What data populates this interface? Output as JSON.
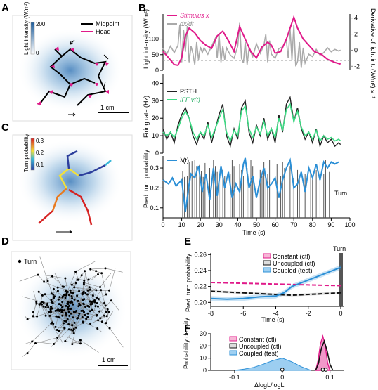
{
  "panel_labels": {
    "a": "A",
    "b": "B",
    "c": "C",
    "d": "D",
    "e": "E",
    "f": "F"
  },
  "panel_a": {
    "colorbar_label": "Light intensity (W/m²)",
    "colorbar_max": "200",
    "colorbar_min": "0",
    "legend_midpoint": "Midpoint",
    "legend_head": "Head",
    "scalebar": "1 cm",
    "colors": {
      "midpoint": "#000000",
      "head": "#e01a8a",
      "light": "#3a7ab8"
    }
  },
  "panel_c": {
    "colorbar_label": "Turn probability",
    "colorbar_ticks": [
      "0.3",
      "0.2",
      "0.1"
    ]
  },
  "panel_d": {
    "legend_turn": "Turn",
    "scalebar": "1 cm"
  },
  "chart_data": [
    {
      "id": "B-top",
      "type": "line",
      "x_ticks": [],
      "xlim": [
        0,
        100
      ],
      "ylim": [
        0,
        180
      ],
      "y_ticks": [
        "0",
        "50",
        "100"
      ],
      "ylabel": "Light intensity (W/m²)",
      "y2_ticks": [
        "4",
        "2",
        "0",
        "-2"
      ],
      "y2label": "Derivative of light int. (W/m²) s⁻¹",
      "series": [
        {
          "name": "Stimulus x",
          "color": "#e01a8a",
          "x": [
            0,
            3,
            6,
            8,
            10,
            12,
            14,
            17,
            20,
            23,
            26,
            29,
            32,
            35,
            38,
            41,
            44,
            47,
            50,
            53,
            56,
            58,
            60,
            63,
            66,
            68,
            70,
            72,
            75,
            78,
            81,
            85,
            88,
            92,
            95
          ],
          "y": [
            60,
            40,
            18,
            16,
            40,
            110,
            135,
            120,
            95,
            80,
            70,
            110,
            125,
            95,
            60,
            140,
            100,
            60,
            40,
            75,
            90,
            80,
            55,
            60,
            100,
            135,
            170,
            135,
            100,
            80,
            60,
            50,
            35,
            25,
            20
          ]
        },
        {
          "name": "dx/dt",
          "color": "#aaaaaa",
          "x": [
            0,
            2,
            4,
            6,
            8,
            9,
            10,
            11,
            12,
            13,
            14,
            15,
            16,
            17,
            18,
            19,
            20,
            21,
            22,
            24,
            26,
            28,
            29,
            30,
            31,
            32,
            33,
            34,
            36,
            38,
            40,
            41,
            42,
            43,
            44,
            45,
            46,
            48,
            50,
            52,
            54,
            55,
            56,
            57,
            58,
            60,
            62,
            64,
            66,
            67,
            68,
            69,
            70,
            71,
            72,
            73,
            74,
            75,
            76,
            78,
            80,
            82,
            84,
            86,
            88,
            90,
            92,
            94,
            95
          ],
          "y": [
            0.2,
            -0.5,
            0.5,
            -0.3,
            0.6,
            3.2,
            -1.5,
            2.5,
            -0.2,
            3.0,
            -1.5,
            0.5,
            -0.4,
            -1.8,
            1.0,
            -1.2,
            0.4,
            -0.3,
            0.3,
            -0.5,
            0.5,
            1.5,
            -1.0,
            2.0,
            -1.5,
            0.5,
            -1.2,
            0.3,
            -0.6,
            -1.0,
            0.5,
            3.4,
            -1.0,
            -1.6,
            1.0,
            -1.8,
            0.2,
            -0.8,
            0.8,
            -0.4,
            0.6,
            2.0,
            -1.5,
            1.2,
            -0.5,
            -1.0,
            0.2,
            0.4,
            1.2,
            -1.0,
            2.6,
            -1.2,
            3.2,
            -2.0,
            -1.4,
            1.0,
            -2.2,
            0.3,
            -1.6,
            -0.5,
            -0.8,
            0.1,
            -0.6,
            -0.3,
            0.3,
            -0.2,
            0.1,
            -0.1,
            0
          ]
        }
      ]
    },
    {
      "id": "B-mid",
      "type": "line",
      "xlim": [
        0,
        100
      ],
      "ylim": [
        0,
        45
      ],
      "y_ticks": [
        "0",
        "10",
        "20",
        "30",
        "40"
      ],
      "ylabel": "Firing rate (Hz)",
      "series": [
        {
          "name": "PSTH",
          "color": "#222222",
          "x": [
            0,
            2,
            4,
            6,
            8,
            10,
            12,
            14,
            16,
            18,
            20,
            22,
            24,
            26,
            28,
            30,
            32,
            34,
            36,
            38,
            40,
            42,
            44,
            46,
            48,
            50,
            52,
            54,
            56,
            58,
            60,
            62,
            64,
            66,
            68,
            70,
            72,
            74,
            76,
            78,
            80,
            82,
            84,
            86,
            88,
            90,
            92,
            94,
            95
          ],
          "y": [
            14,
            8,
            12,
            6,
            16,
            22,
            26,
            20,
            10,
            5,
            12,
            8,
            18,
            6,
            14,
            22,
            28,
            10,
            4,
            14,
            8,
            26,
            30,
            12,
            6,
            16,
            10,
            20,
            8,
            14,
            6,
            22,
            12,
            28,
            32,
            18,
            26,
            14,
            8,
            12,
            6,
            14,
            4,
            10,
            6,
            8,
            4,
            6,
            5
          ]
        },
        {
          "name": "IFF v(t)",
          "color": "#3ddc84",
          "x": [
            0,
            2,
            4,
            6,
            8,
            10,
            12,
            14,
            16,
            18,
            20,
            22,
            24,
            26,
            28,
            30,
            32,
            34,
            36,
            38,
            40,
            42,
            44,
            46,
            48,
            50,
            52,
            54,
            56,
            58,
            60,
            62,
            64,
            66,
            68,
            70,
            72,
            74,
            76,
            78,
            80,
            82,
            84,
            86,
            88,
            90,
            92,
            94,
            95
          ],
          "y": [
            12,
            10,
            12,
            9,
            14,
            20,
            24,
            20,
            12,
            8,
            12,
            10,
            16,
            9,
            14,
            20,
            25,
            12,
            7,
            13,
            10,
            24,
            27,
            14,
            9,
            15,
            11,
            18,
            10,
            14,
            9,
            20,
            13,
            25,
            28,
            18,
            24,
            15,
            10,
            12,
            8,
            13,
            7,
            10,
            8,
            9,
            7,
            8,
            7
          ]
        }
      ]
    },
    {
      "id": "B-bottom",
      "type": "line",
      "xlim": [
        0,
        100
      ],
      "ylim": [
        0.05,
        0.36
      ],
      "x_ticks": [
        "0",
        "10",
        "20",
        "30",
        "40",
        "50",
        "60",
        "70",
        "80",
        "90",
        "100"
      ],
      "xlabel": "Time (s)",
      "y_ticks": [
        "0.1",
        "0.2",
        "0.3"
      ],
      "ylabel": "Pred. turn probability",
      "series": [
        {
          "name": "λ(t)",
          "color": "#2b8fd6",
          "x": [
            0,
            3,
            5,
            7,
            9,
            10,
            12,
            14,
            15,
            17,
            19,
            21,
            23,
            25,
            27,
            29,
            31,
            33,
            35,
            37,
            39,
            41,
            43,
            44,
            46,
            48,
            50,
            52,
            54,
            56,
            58,
            60,
            62,
            64,
            66,
            68,
            70,
            72,
            74,
            76,
            78,
            80,
            82,
            84,
            86,
            88,
            90,
            92,
            94
          ],
          "y": [
            0.24,
            0.22,
            0.25,
            0.21,
            0.23,
            0.24,
            0.08,
            0.22,
            0.27,
            0.25,
            0.31,
            0.18,
            0.27,
            0.14,
            0.3,
            0.16,
            0.31,
            0.2,
            0.28,
            0.15,
            0.22,
            0.18,
            0.32,
            0.35,
            0.2,
            0.26,
            0.15,
            0.24,
            0.3,
            0.2,
            0.22,
            0.25,
            0.15,
            0.24,
            0.3,
            0.34,
            0.2,
            0.22,
            0.28,
            0.18,
            0.3,
            0.25,
            0.32,
            0.24,
            0.33,
            0.3,
            0.33,
            0.32,
            0.33
          ]
        }
      ],
      "turn_label": "Turn",
      "turn_times": [
        10.5,
        11.5,
        13,
        14,
        15.5,
        17,
        18,
        19.5,
        20.5,
        21.5,
        22.5,
        23.5,
        25,
        27,
        28,
        29,
        30,
        31,
        32,
        33,
        36,
        37,
        38,
        41,
        42,
        43,
        45,
        46,
        47,
        48,
        52,
        53,
        54,
        55,
        56,
        57,
        61,
        63,
        64,
        65,
        68,
        69,
        70,
        72,
        73,
        76,
        79,
        80,
        82,
        84,
        86,
        87,
        89
      ]
    },
    {
      "id": "E",
      "type": "line",
      "xlim": [
        -8,
        0
      ],
      "ylim": [
        0.195,
        0.262
      ],
      "x_ticks": [
        "-8",
        "-6",
        "-4",
        "-2",
        "0"
      ],
      "xlabel": "Time (s)",
      "y_ticks": [
        "0.20",
        "0.22",
        "0.24",
        "0.26"
      ],
      "ylabel": "Pred. turn probability",
      "turn_label": "Turn",
      "series": [
        {
          "name": "Constant (ctl)",
          "color": "#e01a8a",
          "style": "dashed",
          "x": [
            -8,
            -6,
            -4,
            -2,
            0
          ],
          "y": [
            0.225,
            0.224,
            0.223,
            0.222,
            0.221
          ]
        },
        {
          "name": "Uncoupled (ctl)",
          "color": "#111111",
          "style": "dashed",
          "x": [
            -8,
            -7,
            -6,
            -5,
            -4,
            -3,
            -2,
            -1,
            0
          ],
          "y": [
            0.214,
            0.213,
            0.212,
            0.211,
            0.21,
            0.209,
            0.21,
            0.211,
            0.212
          ]
        },
        {
          "name": "Coupled (test)",
          "color": "#2b8fd6",
          "x": [
            -8,
            -7,
            -6,
            -5,
            -4,
            -3.5,
            -3,
            -2,
            -1,
            0
          ],
          "y": [
            0.205,
            0.204,
            0.205,
            0.207,
            0.208,
            0.212,
            0.22,
            0.228,
            0.236,
            0.244
          ]
        }
      ]
    },
    {
      "id": "F",
      "type": "area",
      "xlim": [
        -0.15,
        0.13
      ],
      "ylim": [
        0,
        30
      ],
      "x_ticks": [
        "-0.1",
        "0",
        "0.1"
      ],
      "xlabel": "ΔlogL/logL",
      "y_ticks": [
        "0",
        "10",
        "20",
        "30"
      ],
      "ylabel": "Probability density",
      "series": [
        {
          "name": "Constant (ctl)",
          "color": "#e01a8a",
          "x": [
            0.07,
            0.075,
            0.08,
            0.085,
            0.09,
            0.095,
            0.1
          ],
          "y": [
            0,
            8,
            22,
            28,
            20,
            6,
            0
          ]
        },
        {
          "name": "Uncoupled (ctl)",
          "color": "#111111",
          "x": [
            0.07,
            0.076,
            0.082,
            0.088,
            0.094,
            0.1,
            0.106
          ],
          "y": [
            0,
            6,
            18,
            24,
            16,
            5,
            0
          ]
        },
        {
          "name": "Coupled (test)",
          "color": "#2b8fd6",
          "x": [
            -0.1,
            -0.08,
            -0.06,
            -0.04,
            -0.02,
            0.0,
            0.02,
            0.04,
            0.06
          ],
          "y": [
            0,
            1,
            2.5,
            5,
            8,
            10,
            7,
            3,
            0
          ]
        }
      ]
    }
  ]
}
